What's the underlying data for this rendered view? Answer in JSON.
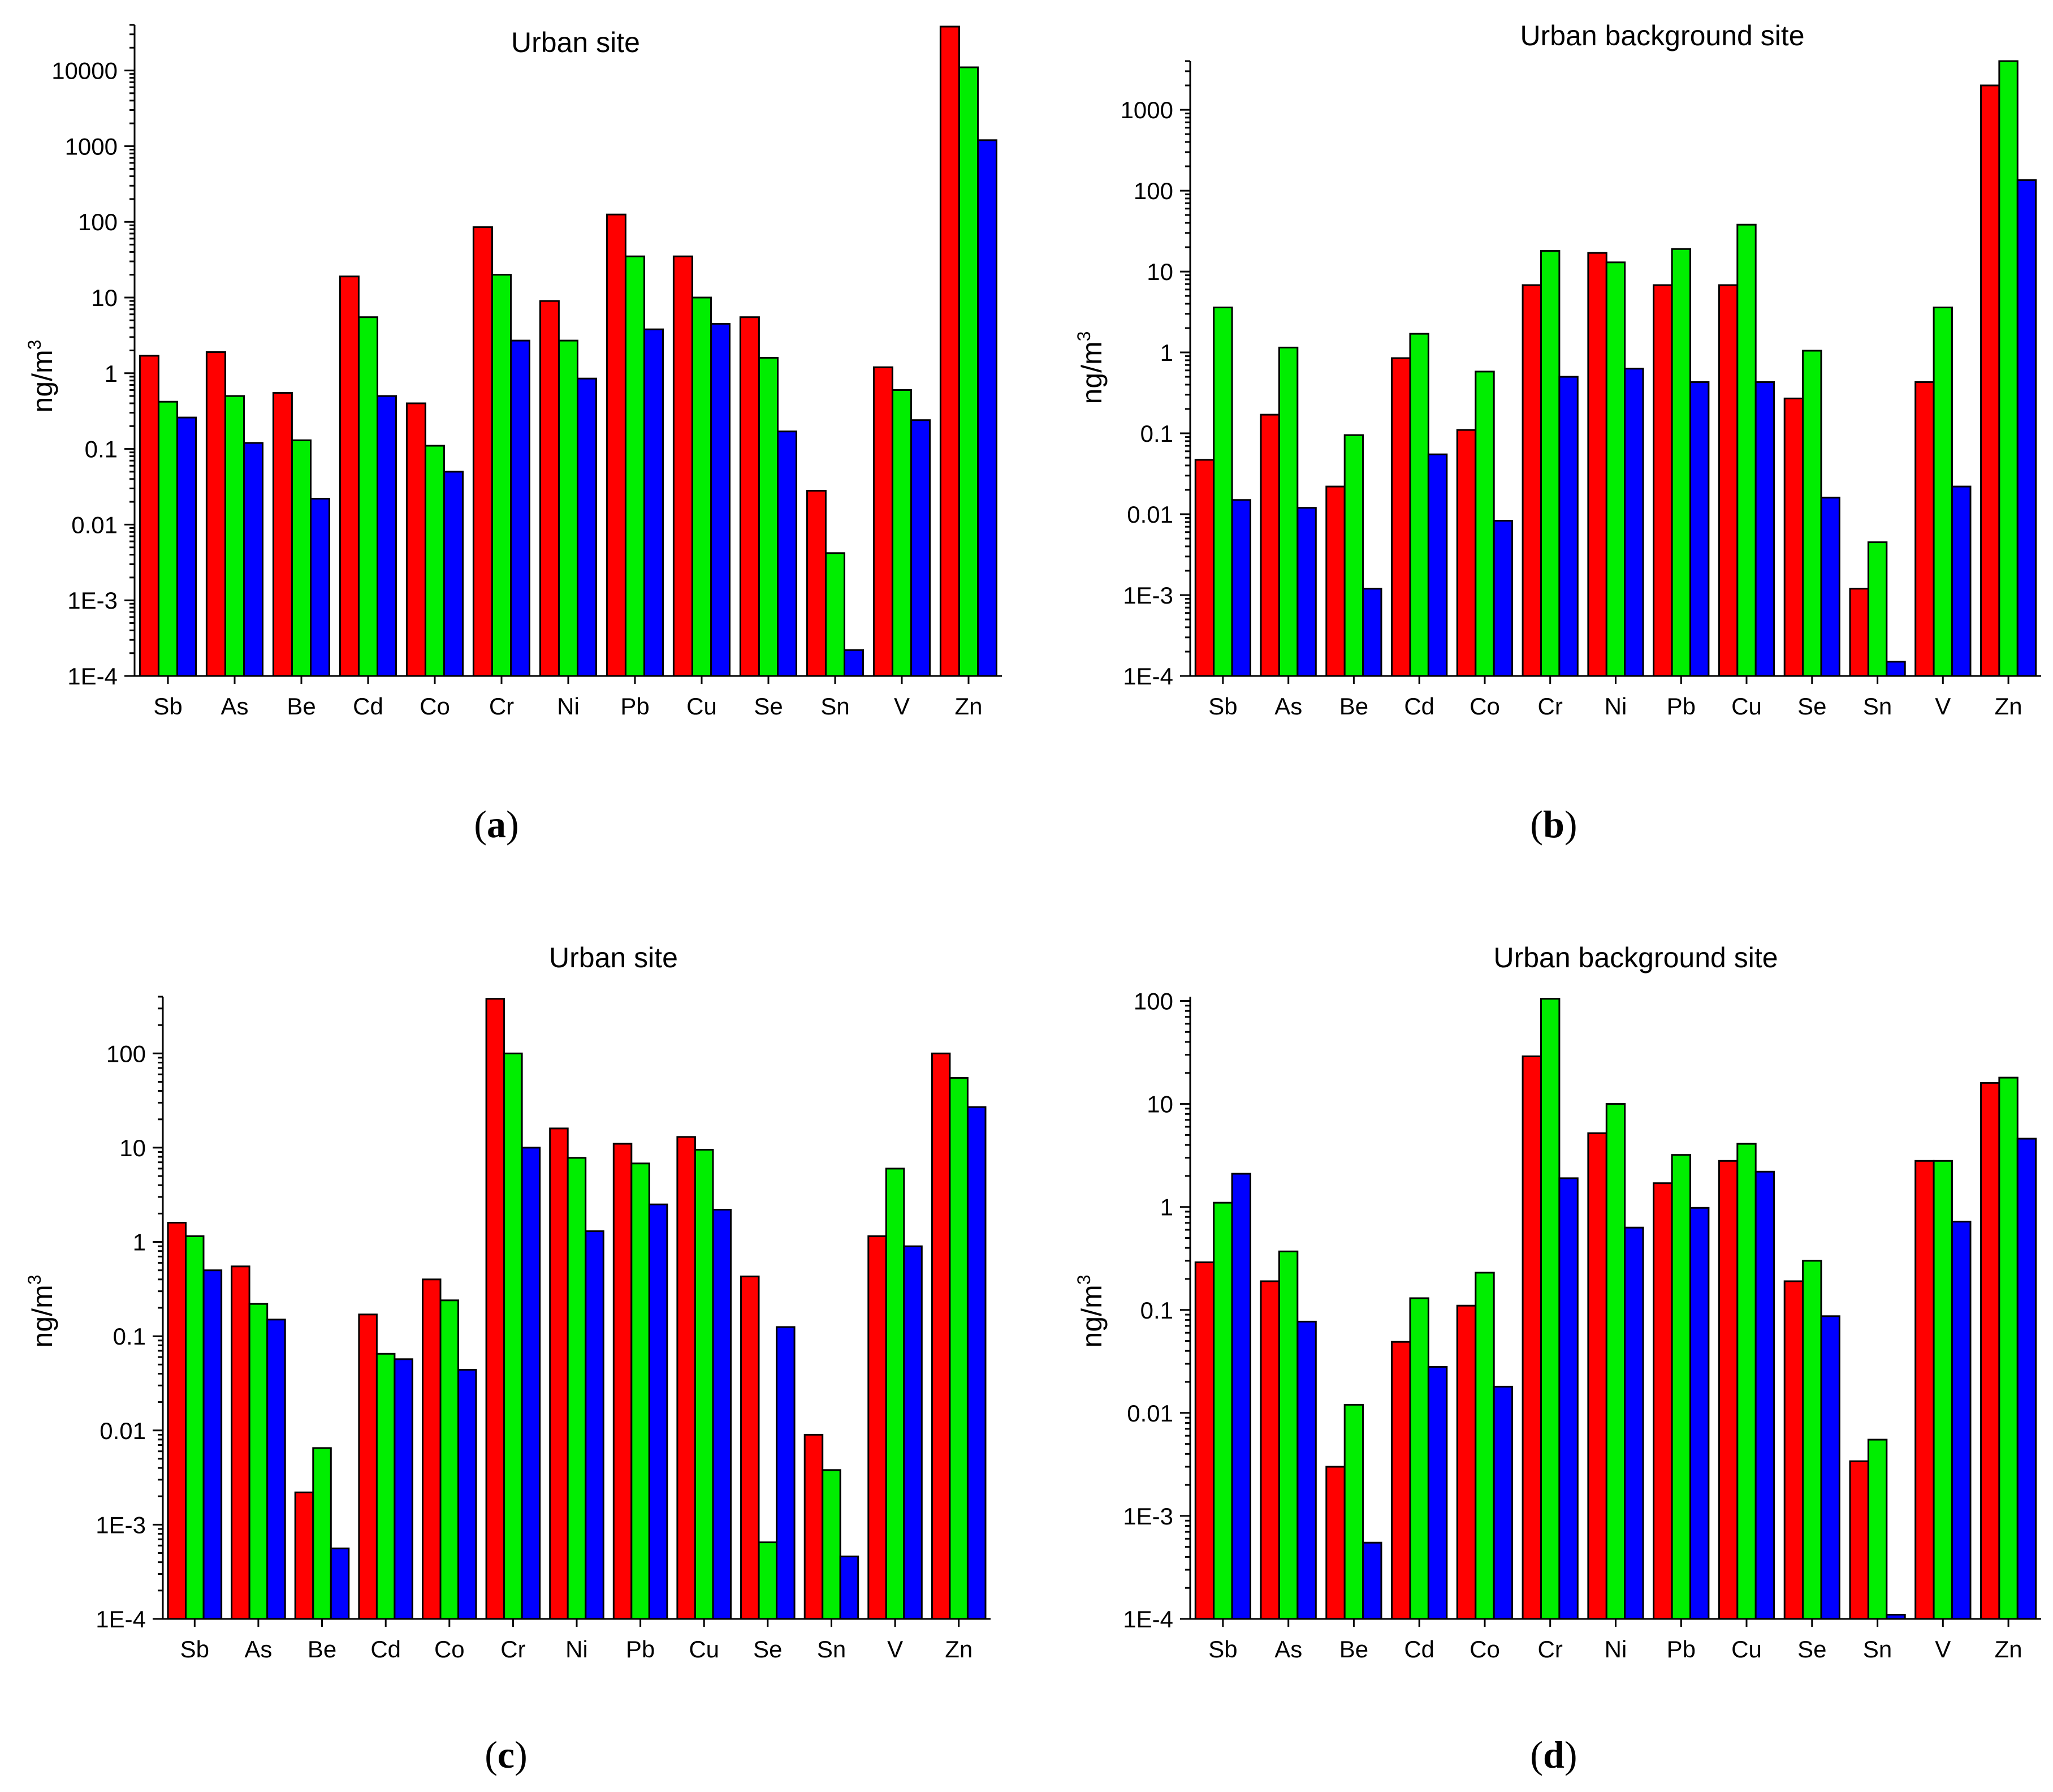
{
  "colors": {
    "series1": "#ff0000",
    "series2": "#00ee00",
    "series3": "#0000ff"
  },
  "chart_data": [
    {
      "type": "bar",
      "title": "Urban site",
      "caption_label": "a",
      "ylabel_base": "ng/m",
      "ylabel_exp": "3",
      "yscale": "log",
      "ylim": [
        0.0001,
        40000
      ],
      "yticks": [
        0.0001,
        0.001,
        0.01,
        0.1,
        1,
        10,
        100,
        1000,
        10000
      ],
      "ytick_labels": [
        "1E-4",
        "1E-3",
        "0.01",
        "0.1",
        "1",
        "10",
        "100",
        "1000",
        "10000"
      ],
      "categories": [
        "Sb",
        "As",
        "Be",
        "Cd",
        "Co",
        "Cr",
        "Ni",
        "Pb",
        "Cu",
        "Se",
        "Sn",
        "V",
        "Zn"
      ],
      "series": [
        {
          "values": [
            1.7,
            1.9,
            0.55,
            19,
            0.4,
            85,
            9,
            125,
            35,
            5.5,
            0.028,
            1.2,
            38000
          ]
        },
        {
          "values": [
            0.42,
            0.5,
            0.13,
            5.5,
            0.11,
            20,
            2.7,
            35,
            10,
            1.6,
            0.0042,
            0.6,
            11000
          ]
        },
        {
          "values": [
            0.26,
            0.12,
            0.022,
            0.5,
            0.05,
            2.7,
            0.85,
            3.8,
            4.5,
            0.17,
            0.00022,
            0.24,
            1200
          ]
        }
      ]
    },
    {
      "type": "bar",
      "title": "Urban background site",
      "caption_label": "b",
      "ylabel_base": "ng/m",
      "ylabel_exp": "3",
      "yscale": "log",
      "ylim": [
        0.0001,
        4000
      ],
      "yticks": [
        0.0001,
        0.001,
        0.01,
        0.1,
        1,
        10,
        100,
        1000
      ],
      "ytick_labels": [
        "1E-4",
        "1E-3",
        "0.01",
        "0.1",
        "1",
        "10",
        "100",
        "1000"
      ],
      "categories": [
        "Sb",
        "As",
        "Be",
        "Cd",
        "Co",
        "Cr",
        "Ni",
        "Pb",
        "Cu",
        "Se",
        "Sn",
        "V",
        "Zn"
      ],
      "series": [
        {
          "values": [
            0.047,
            0.17,
            0.022,
            0.85,
            0.11,
            6.8,
            17,
            6.8,
            6.8,
            0.27,
            0.0012,
            0.43,
            2000
          ]
        },
        {
          "values": [
            3.6,
            1.15,
            0.095,
            1.7,
            0.58,
            18,
            13,
            19,
            38,
            1.05,
            0.0045,
            3.6,
            4000
          ]
        },
        {
          "values": [
            0.015,
            0.012,
            0.0012,
            0.055,
            0.0083,
            0.5,
            0.63,
            0.43,
            0.43,
            0.016,
            0.00015,
            0.022,
            135
          ]
        }
      ]
    },
    {
      "type": "bar",
      "title": "Urban site",
      "caption_label": "c",
      "ylabel_base": "ng/m",
      "ylabel_exp": "3",
      "yscale": "log",
      "ylim": [
        0.0001,
        400
      ],
      "yticks": [
        0.0001,
        0.001,
        0.01,
        0.1,
        1,
        10,
        100
      ],
      "ytick_labels": [
        "1E-4",
        "1E-3",
        "0.01",
        "0.1",
        "1",
        "10",
        "100"
      ],
      "categories": [
        "Sb",
        "As",
        "Be",
        "Cd",
        "Co",
        "Cr",
        "Ni",
        "Pb",
        "Cu",
        "Se",
        "Sn",
        "V",
        "Zn"
      ],
      "series": [
        {
          "values": [
            1.6,
            0.55,
            0.0022,
            0.17,
            0.4,
            380,
            16,
            11,
            13,
            0.43,
            0.009,
            1.15,
            100
          ]
        },
        {
          "values": [
            1.15,
            0.22,
            0.0065,
            0.065,
            0.24,
            100,
            7.8,
            6.8,
            9.5,
            0.00065,
            0.0038,
            6,
            55
          ]
        },
        {
          "values": [
            0.5,
            0.15,
            0.00056,
            0.057,
            0.044,
            10,
            1.3,
            2.5,
            2.2,
            0.125,
            0.00046,
            0.9,
            27
          ]
        }
      ]
    },
    {
      "type": "bar",
      "title": "Urban background site",
      "caption_label": "d",
      "ylabel_base": "ng/m",
      "ylabel_exp": "3",
      "yscale": "log",
      "ylim": [
        0.0001,
        110
      ],
      "yticks": [
        0.0001,
        0.001,
        0.01,
        0.1,
        1,
        10,
        100
      ],
      "ytick_labels": [
        "1E-4",
        "1E-3",
        "0.01",
        "0.1",
        "1",
        "10",
        "100"
      ],
      "categories": [
        "Sb",
        "As",
        "Be",
        "Cd",
        "Co",
        "Cr",
        "Ni",
        "Pb",
        "Cu",
        "Se",
        "Sn",
        "V",
        "Zn"
      ],
      "series": [
        {
          "values": [
            0.29,
            0.19,
            0.003,
            0.049,
            0.11,
            29,
            5.2,
            1.7,
            2.8,
            0.19,
            0.0034,
            2.8,
            16
          ]
        },
        {
          "values": [
            1.1,
            0.37,
            0.012,
            0.13,
            0.23,
            105,
            10,
            3.2,
            4.1,
            0.3,
            0.0055,
            2.8,
            18
          ]
        },
        {
          "values": [
            2.1,
            0.077,
            0.00055,
            0.028,
            0.018,
            1.9,
            0.63,
            0.98,
            2.2,
            0.087,
            0.00011,
            0.72,
            4.6
          ]
        }
      ]
    }
  ]
}
